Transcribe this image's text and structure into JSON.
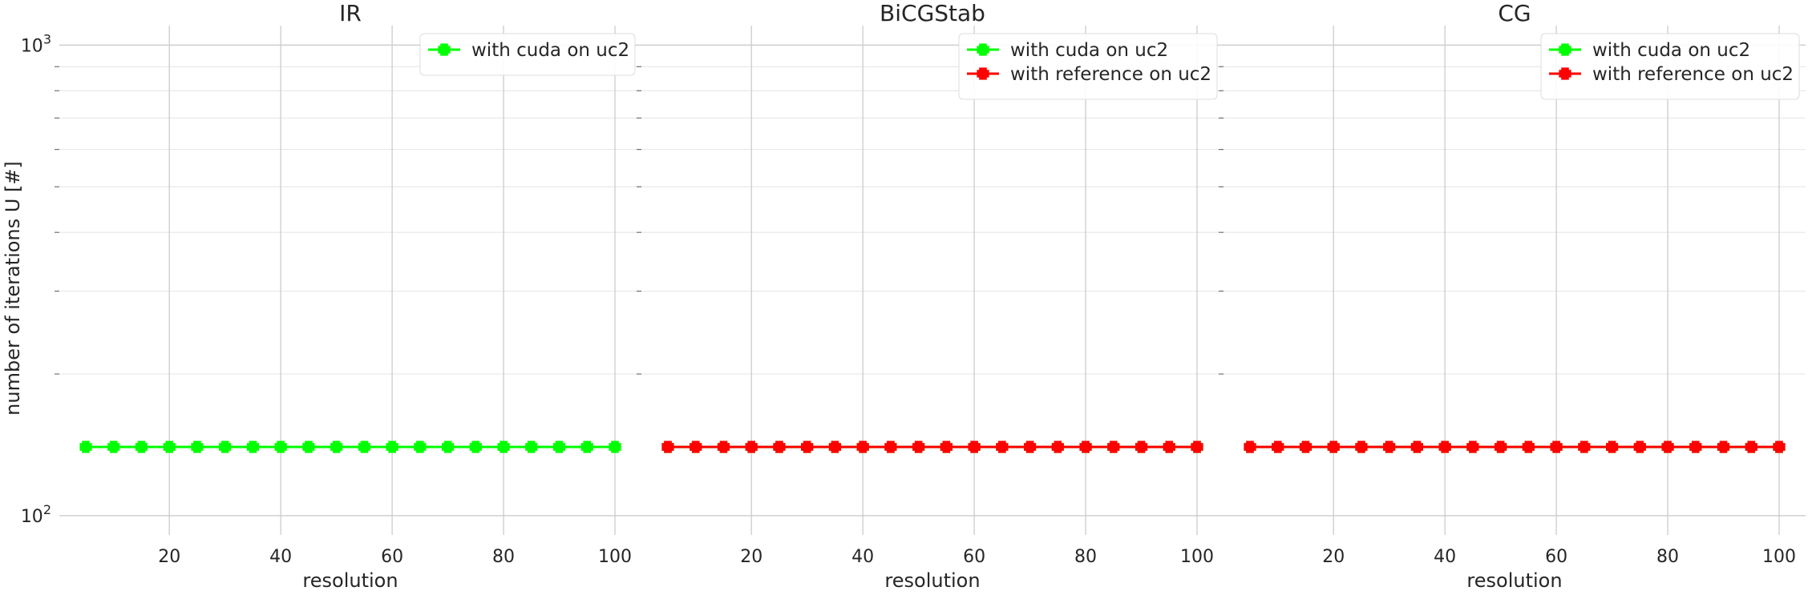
{
  "ylabel": "number of iterations U [#]",
  "chart_data": [
    {
      "type": "line",
      "title": "IR",
      "xlabel": "resolution",
      "x": [
        5,
        10,
        15,
        20,
        25,
        30,
        35,
        40,
        45,
        50,
        55,
        60,
        65,
        70,
        75,
        80,
        85,
        90,
        95,
        100
      ],
      "xticks": [
        20,
        40,
        60,
        80,
        100
      ],
      "xlim": [
        0.25,
        104.75
      ],
      "yscale": "log",
      "ylim": [
        91,
        1100
      ],
      "yticks": [
        {
          "value": 100,
          "base": "10",
          "exp": "2"
        },
        {
          "value": 1000,
          "base": "10",
          "exp": "3"
        }
      ],
      "grid": true,
      "legend": "top-right",
      "series": [
        {
          "name": "with cuda on uc2",
          "color": "#00ff00",
          "marker": "plus-filled",
          "values": [
            140,
            140,
            140,
            140,
            140,
            140,
            140,
            140,
            140,
            140,
            140,
            140,
            140,
            140,
            140,
            140,
            140,
            140,
            140,
            140
          ]
        }
      ]
    },
    {
      "type": "line",
      "title": "BiCGStab",
      "xlabel": "resolution",
      "x": [
        5,
        10,
        15,
        20,
        25,
        30,
        35,
        40,
        45,
        50,
        55,
        60,
        65,
        70,
        75,
        80,
        85,
        90,
        95,
        100
      ],
      "xticks": [
        20,
        40,
        60,
        80,
        100
      ],
      "xlim": [
        0.25,
        104.75
      ],
      "yscale": "log",
      "ylim": [
        91,
        1100
      ],
      "grid": true,
      "legend": "top-right",
      "series": [
        {
          "name": "with cuda on uc2",
          "color": "#00ff00",
          "marker": "plus-filled",
          "values": [
            140,
            140,
            140,
            140,
            140,
            140,
            140,
            140,
            140,
            140,
            140,
            140,
            140,
            140,
            140,
            140,
            140,
            140,
            140,
            140
          ]
        },
        {
          "name": "with reference on uc2",
          "color": "#ff0000",
          "marker": "plus-filled",
          "values": [
            140,
            140,
            140,
            140,
            140,
            140,
            140,
            140,
            140,
            140,
            140,
            140,
            140,
            140,
            140,
            140,
            140,
            140,
            140,
            140
          ]
        }
      ]
    },
    {
      "type": "line",
      "title": "CG",
      "xlabel": "resolution",
      "x": [
        5,
        10,
        15,
        20,
        25,
        30,
        35,
        40,
        45,
        50,
        55,
        60,
        65,
        70,
        75,
        80,
        85,
        90,
        95,
        100
      ],
      "xticks": [
        20,
        40,
        60,
        80,
        100
      ],
      "xlim": [
        0.25,
        104.75
      ],
      "yscale": "log",
      "ylim": [
        91,
        1100
      ],
      "grid": true,
      "legend": "top-right",
      "series": [
        {
          "name": "with cuda on uc2",
          "color": "#00ff00",
          "marker": "plus-filled",
          "values": [
            140,
            140,
            140,
            140,
            140,
            140,
            140,
            140,
            140,
            140,
            140,
            140,
            140,
            140,
            140,
            140,
            140,
            140,
            140,
            140
          ]
        },
        {
          "name": "with reference on uc2",
          "color": "#ff0000",
          "marker": "plus-filled",
          "values": [
            140,
            140,
            140,
            140,
            140,
            140,
            140,
            140,
            140,
            140,
            140,
            140,
            140,
            140,
            140,
            140,
            140,
            140,
            140,
            140
          ]
        }
      ]
    }
  ]
}
